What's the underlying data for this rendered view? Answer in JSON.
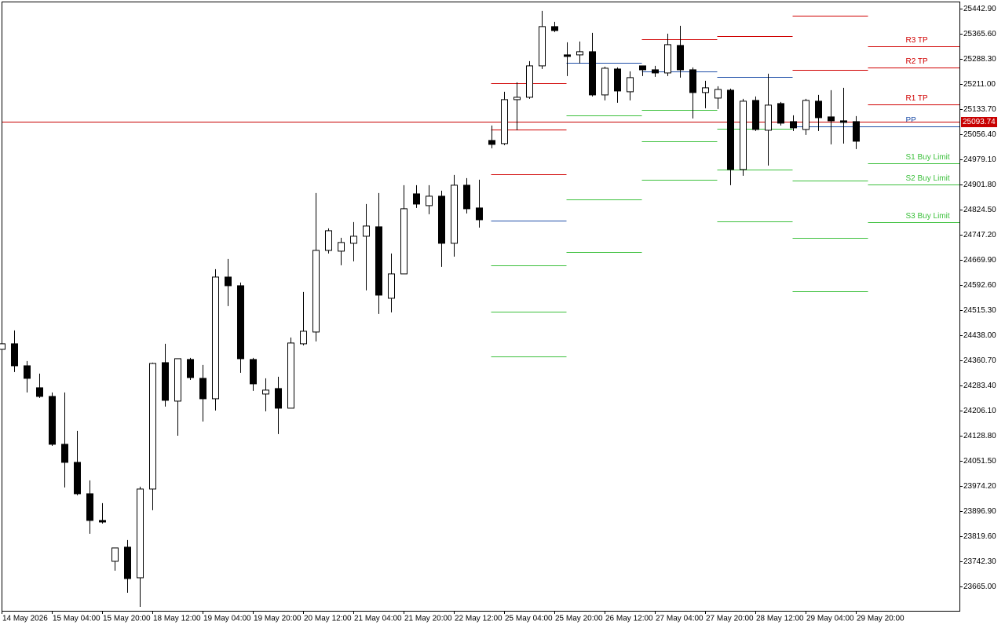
{
  "chart_data": {
    "type": "candlestick",
    "categories": [
      "14 May 2026",
      null,
      null,
      null,
      "15 May 04:00",
      null,
      null,
      null,
      "15 May 20:00",
      null,
      null,
      null,
      "18 May 12:00",
      null,
      null,
      null,
      "19 May 04:00",
      null,
      null,
      null,
      "19 May 20:00",
      null,
      null,
      null,
      "20 May 12:00",
      null,
      null,
      null,
      "21 May 04:00",
      null,
      null,
      null,
      "21 May 20:00",
      null,
      null,
      null,
      "22 May 12:00",
      null,
      null,
      null,
      "25 May 04:00",
      null,
      null,
      null,
      "25 May 20:00",
      null,
      null,
      null,
      "26 May 12:00",
      null,
      null,
      null,
      "27 May 04:00",
      null,
      null,
      null,
      "27 May 20:00",
      null,
      null,
      null,
      "28 May 12:00",
      null,
      null,
      null,
      "29 May 04:00",
      null,
      null,
      null,
      "29 May 20:00"
    ],
    "open": [
      24394.5,
      24411.5,
      24343.8,
      24276.2,
      24249.6,
      24102.3,
      24046.7,
      23950.1,
      23868.0,
      23742.3,
      23785.8,
      23691.6,
      23964.6,
      24353.5,
      24235.1,
      24363.2,
      24305.2,
      24242.4,
      24616.8,
      24590.2,
      24363.2,
      24256.9,
      24273.8,
      24213.4,
      24411.5,
      24447.7,
      24698.9,
      24696.5,
      24720.7,
      24742.4,
      24771.4,
      24551.6,
      24626.5,
      24872.8,
      24836.6,
      24865.6,
      24720.7,
      24899.4,
      24829.4,
      25037.1,
      25027.4,
      25162.7,
      25170.0,
      25266.6,
      25387.4,
      25300.4,
      25300.4,
      25310.1,
      25177.2,
      25256.9,
      25186.9,
      25266.6,
      25254.5,
      25244.8,
      25329.4,
      25254.5,
      25184.5,
      25167.5,
      25191.7,
      24947.7,
      25160.3,
      25068.5,
      25150.6,
      25095.1,
      25070.9,
      25157.9,
      25109.6,
      25097.5,
      25095.1
    ],
    "high": [
      24416.3,
      24452.5,
      24358.3,
      24319.7,
      24261.7,
      24261.7,
      24143.3,
      23991.2,
      23921.1,
      23783.4,
      23807.6,
      23971.8,
      24353.5,
      24411.5,
      24365.6,
      24368.0,
      24346.2,
      24640.9,
      24672.4,
      24599.9,
      24368.0,
      24305.2,
      24310.0,
      24430.8,
      24570.9,
      24875.3,
      24766.6,
      24737.6,
      24785.9,
      24841.4,
      24875.3,
      24689.3,
      24899.4,
      24899.4,
      24899.4,
      24882.5,
      24930.8,
      24921.2,
      24916.3,
      25083.0,
      25186.9,
      25215.9,
      25281.1,
      25435.7,
      25401.9,
      25339.1,
      25341.5,
      25368.0,
      25264.2,
      25261.8,
      25249.7,
      25266.6,
      25266.6,
      25365.6,
      25389.8,
      25261.8,
      25220.7,
      25203.8,
      25196.5,
      25165.1,
      25172.4,
      25242.4,
      25155.5,
      25114.4,
      25165.1,
      25177.2,
      25191.7,
      25199.0,
      25112.0
    ],
    "low": [
      24392.1,
      24324.5,
      24261.7,
      24244.8,
      24097.4,
      23969.4,
      23945.3,
      23826.9,
      23858.3,
      23713.4,
      23645.7,
      23602.2,
      23899.4,
      24218.2,
      24128.8,
      24300.3,
      24172.3,
      24206.1,
      24527.4,
      24322.1,
      24266.5,
      24203.7,
      24133.7,
      24213.4,
      24406.6,
      24418.7,
      24689.3,
      24653.0,
      24665.1,
      24575.7,
      24503.3,
      24508.1,
      24626.5,
      24829.4,
      24810.0,
      24648.2,
      24679.6,
      24812.5,
      24769.0,
      25013.0,
      25022.6,
      25068.5,
      25165.1,
      25256.9,
      25370.5,
      25235.2,
      25273.8,
      25172.4,
      25160.3,
      25153.1,
      25160.3,
      25235.2,
      25232.8,
      25235.2,
      25230.4,
      25104.7,
      25136.1,
      25133.7,
      24899.4,
      24928.4,
      25066.1,
      24959.8,
      25083.0,
      25066.1,
      25054.0,
      25066.1,
      25025.0,
      25027.4,
      25010.5
    ],
    "close": [
      24411.5,
      24343.8,
      24305.2,
      24249.6,
      24102.3,
      24046.7,
      23950.1,
      23868.0,
      23863.1,
      23783.4,
      23689.2,
      23964.6,
      24351.1,
      24237.6,
      24365.6,
      24307.6,
      24242.4,
      24616.8,
      24590.2,
      24365.6,
      24288.3,
      24269.0,
      24213.4,
      24413.9,
      24450.1,
      24698.9,
      24759.3,
      24723.1,
      24742.4,
      24773.8,
      24561.2,
      24626.5,
      24827.0,
      24841.4,
      24865.6,
      24720.7,
      24899.4,
      24827.0,
      24793.1,
      25025.0,
      25162.7,
      25170.0,
      25266.6,
      25387.4,
      25375.3,
      25295.6,
      25310.1,
      25177.2,
      25259.3,
      25189.3,
      25230.4,
      25254.5,
      25244.8,
      25331.8,
      25254.5,
      25184.5,
      25199.0,
      25194.1,
      24947.7,
      25157.9,
      25070.9,
      25145.8,
      25090.3,
      25075.8,
      25160.3,
      25107.2,
      25097.5,
      25092.7,
      25034.7
    ],
    "bull_color": "#ffffff",
    "bear_color": "#000000",
    "ylim": [
      23590,
      25462
    ],
    "yticks": [
      {
        "value": 25442.9,
        "label": "25442.90"
      },
      {
        "value": 25365.6,
        "label": "25365.60"
      },
      {
        "value": 25288.3,
        "label": "25288.30"
      },
      {
        "value": 25211.0,
        "label": "25211.00"
      },
      {
        "value": 25133.7,
        "label": "25133.70"
      },
      {
        "value": 25056.4,
        "label": "25056.40"
      },
      {
        "value": 24979.1,
        "label": "24979.10"
      },
      {
        "value": 24901.8,
        "label": "24901.80"
      },
      {
        "value": 24824.5,
        "label": "24824.50"
      },
      {
        "value": 24747.2,
        "label": "24747.20"
      },
      {
        "value": 24669.9,
        "label": "24669.90"
      },
      {
        "value": 24592.6,
        "label": "24592.60"
      },
      {
        "value": 24515.3,
        "label": "24515.30"
      },
      {
        "value": 24438.0,
        "label": "24438.00"
      },
      {
        "value": 24360.7,
        "label": "24360.70"
      },
      {
        "value": 24283.4,
        "label": "24283.40"
      },
      {
        "value": 24206.1,
        "label": "24206.10"
      },
      {
        "value": 24128.8,
        "label": "24128.80"
      },
      {
        "value": 24051.5,
        "label": "24051.50"
      },
      {
        "value": 23974.2,
        "label": "23974.20"
      },
      {
        "value": 23896.9,
        "label": "23896.90"
      },
      {
        "value": 23819.6,
        "label": "23819.60"
      },
      {
        "value": 23742.3,
        "label": "23742.30"
      },
      {
        "value": 23665.0,
        "label": "23665.00"
      }
    ],
    "current_price": 25093.74,
    "current_price_color": "#c80000",
    "levels": [
      {
        "name": "R3 TP",
        "color": "#d00000",
        "values": [
          25213.4,
          null,
          null,
          null,
          null,
          25327.0
        ]
      },
      {
        "name": "R2 TP",
        "color": "#d00000",
        "values": [
          25070.9,
          null,
          null,
          null,
          25421.2,
          25261.8
        ]
      },
      {
        "name": "R1 TP",
        "color": "#d00000",
        "values": [
          24933.2,
          null,
          25348.7,
          25358.4,
          25254.5,
          25148.2
        ]
      },
      {
        "name": "PP",
        "color": "#1f4fa8",
        "values": [
          24790.7,
          25276.3,
          25249.7,
          25232.8,
          25080.6,
          25080.6
        ]
      },
      {
        "name": "S1 Buy Limit",
        "color": "#3cc03c",
        "values": [
          24653.0,
          25114.4,
          25131.3,
          25073.3,
          24913.9,
          24967.1
        ]
      },
      {
        "name": "S2 Buy Limit",
        "color": "#3cc03c",
        "values": [
          24510.5,
          24855.9,
          25034.7,
          24947.7,
          24737.6,
          24901.8
        ]
      },
      {
        "name": "S3 Buy Limit",
        "color": "#3cc03c",
        "values": [
          24372.8,
          24694.1,
          24916.3,
          24788.3,
          24573.3,
          24785.9
        ]
      }
    ]
  }
}
